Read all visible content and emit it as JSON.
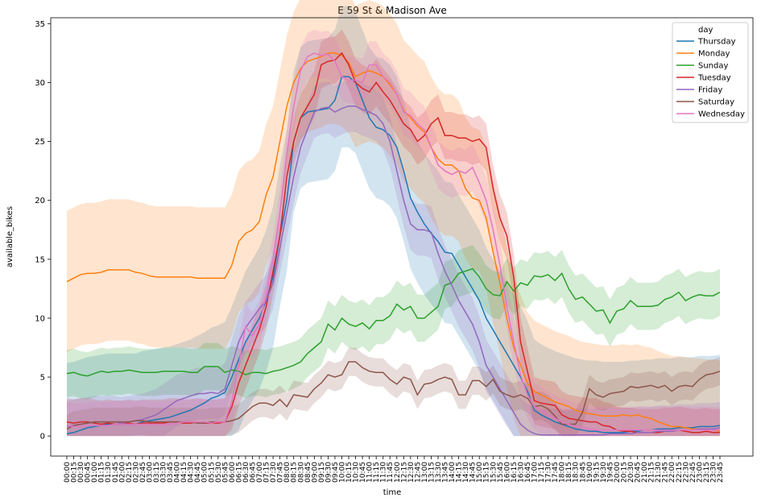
{
  "chart_data": {
    "type": "line",
    "title": "E 59 St & Madison Ave",
    "xlabel": "time",
    "ylabel": "available_bikes",
    "ylim": [
      -1.7,
      35.5
    ],
    "yticks": [
      0,
      5,
      10,
      15,
      20,
      25,
      30,
      35
    ],
    "grid": false,
    "legend": {
      "title": "day",
      "placement": "top-right"
    },
    "x": [
      "00:00",
      "00:15",
      "00:30",
      "00:45",
      "01:00",
      "01:15",
      "01:30",
      "01:45",
      "02:00",
      "02:15",
      "02:30",
      "02:45",
      "03:00",
      "03:15",
      "03:30",
      "03:45",
      "04:00",
      "04:15",
      "04:30",
      "04:45",
      "05:00",
      "05:15",
      "05:30",
      "05:45",
      "06:00",
      "06:15",
      "06:30",
      "06:45",
      "07:00",
      "07:15",
      "07:30",
      "07:45",
      "08:00",
      "08:15",
      "08:30",
      "08:45",
      "09:00",
      "09:15",
      "09:30",
      "09:45",
      "10:00",
      "10:15",
      "10:30",
      "10:45",
      "11:00",
      "11:15",
      "11:30",
      "11:45",
      "12:00",
      "12:15",
      "12:30",
      "12:45",
      "13:00",
      "13:15",
      "13:30",
      "13:45",
      "14:00",
      "14:15",
      "14:30",
      "14:45",
      "15:00",
      "15:15",
      "15:30",
      "15:45",
      "16:00",
      "16:15",
      "16:30",
      "16:45",
      "17:00",
      "17:15",
      "17:30",
      "17:45",
      "18:00",
      "18:15",
      "18:30",
      "18:45",
      "19:00",
      "19:15",
      "19:30",
      "19:45",
      "20:00",
      "20:15",
      "20:30",
      "20:45",
      "21:00",
      "21:15",
      "21:30",
      "21:45",
      "22:00",
      "22:15",
      "22:30",
      "22:45",
      "23:00",
      "23:15",
      "23:30",
      "23:45"
    ],
    "series": [
      {
        "name": "Thursday",
        "color": "#1f77b4",
        "values": [
          0.2,
          0.3,
          0.5,
          0.7,
          0.8,
          0.9,
          1,
          1,
          1,
          1,
          1,
          1.2,
          1.3,
          1.4,
          1.5,
          1.6,
          1.8,
          2,
          2.2,
          2.5,
          2.8,
          3.2,
          3.4,
          3.7,
          5,
          6.5,
          8,
          9,
          10,
          11.5,
          13.5,
          17,
          20,
          25,
          27,
          27.5,
          27.6,
          27.7,
          27.8,
          28.5,
          30.5,
          30.5,
          30,
          28.5,
          27,
          26.2,
          26,
          25.5,
          24.5,
          22.5,
          20.2,
          19,
          18,
          17.2,
          16.5,
          15.6,
          15.5,
          14.5,
          13.5,
          12.5,
          11.5,
          10,
          9,
          8,
          7,
          6,
          5,
          3.8,
          2.2,
          1.8,
          1.5,
          1.2,
          1,
          0.8,
          0.6,
          0.5,
          0.4,
          0.4,
          0.3,
          0.3,
          0.3,
          0.3,
          0.4,
          0.4,
          0.5,
          0.5,
          0.6,
          0.6,
          0.6,
          0.7,
          0.7,
          0.7,
          0.8,
          0.8,
          0.8,
          0.9
        ]
      },
      {
        "name": "Monday",
        "color": "#ff7f0e",
        "values": [
          13.1,
          13.4,
          13.7,
          13.8,
          13.8,
          13.9,
          14.1,
          14.1,
          14.1,
          14.1,
          13.9,
          13.8,
          13.6,
          13.5,
          13.5,
          13.5,
          13.5,
          13.5,
          13.5,
          13.4,
          13.4,
          13.4,
          13.4,
          13.4,
          14.5,
          16.5,
          17.2,
          17.5,
          18.2,
          20.5,
          22,
          25,
          28,
          30,
          31.2,
          31.8,
          32,
          32.2,
          32.5,
          32.5,
          32.3,
          31.7,
          30.5,
          30.8,
          31,
          30.8,
          30.5,
          29.8,
          29,
          27.6,
          27,
          26.3,
          25.8,
          24.5,
          23.5,
          23,
          23,
          22.5,
          21,
          20.2,
          20,
          18.5,
          15.6,
          13,
          10,
          7.5,
          6,
          4.5,
          3.8,
          3.5,
          3.2,
          2.9,
          2.7,
          2.5,
          2.2,
          2,
          1.9,
          1.8,
          1.7,
          1.7,
          1.7,
          1.8,
          1.7,
          1.8,
          1.6,
          1.5,
          1.2,
          1,
          0.8,
          0.8,
          0.7,
          0.6,
          0.6,
          0.5,
          0.5,
          0.4
        ]
      },
      {
        "name": "Sunday",
        "color": "#2ca02c",
        "values": [
          5.3,
          5.4,
          5.2,
          5.1,
          5.3,
          5.5,
          5.4,
          5.5,
          5.5,
          5.6,
          5.5,
          5.4,
          5.4,
          5.4,
          5.5,
          5.5,
          5.5,
          5.5,
          5.4,
          5.4,
          5.9,
          5.9,
          5.9,
          5.4,
          5.6,
          5.5,
          5.2,
          5.4,
          5.4,
          5.3,
          5.5,
          5.6,
          5.8,
          6,
          6.3,
          7,
          7.5,
          8,
          9.5,
          9,
          10,
          9.5,
          9.3,
          9.6,
          9.1,
          9.8,
          9.8,
          10.2,
          11.2,
          10.7,
          11,
          10,
          10,
          10.5,
          11,
          12.8,
          13,
          13.8,
          14,
          14.2,
          13.5,
          12.5,
          12,
          11.9,
          13.1,
          12.3,
          13,
          12.8,
          13.6,
          13.5,
          13.7,
          13.2,
          13.8,
          12.5,
          11.6,
          11.8,
          11.2,
          10.6,
          10.7,
          9.6,
          10.6,
          10.8,
          11.5,
          11,
          11,
          11,
          11.1,
          11.6,
          11.8,
          12.2,
          11.5,
          11.8,
          12,
          11.9,
          11.9,
          12.2
        ]
      },
      {
        "name": "Tuesday",
        "color": "#d62728",
        "values": [
          1.2,
          1.1,
          1.2,
          1.2,
          1.1,
          1.0,
          1.1,
          1.0,
          1.0,
          1.1,
          1.0,
          1.1,
          1.1,
          1.1,
          1.1,
          1.2,
          1.2,
          1.1,
          1.1,
          1.2,
          1.1,
          1.1,
          1.1,
          1.2,
          2.5,
          4.5,
          6,
          7.5,
          9,
          11,
          14,
          17,
          22,
          25,
          27,
          28,
          29,
          31.5,
          31.8,
          31.9,
          32.5,
          31.5,
          30,
          29.5,
          29.2,
          30,
          29.2,
          28.5,
          27.5,
          26.5,
          26,
          25,
          25.5,
          26.5,
          27,
          25.5,
          25.5,
          25.3,
          25.3,
          25,
          25.2,
          24.5,
          21,
          18.5,
          17,
          13.5,
          8,
          5.5,
          3,
          2.8,
          2.7,
          2.6,
          1.8,
          1.5,
          1.4,
          1.3,
          1.2,
          1.2,
          0.9,
          0.8,
          0.5,
          0.4,
          0.4,
          0.3,
          0.3,
          0.3,
          0.3,
          0.4,
          0.4,
          0.5,
          0.4,
          0.3,
          0.3,
          0.4,
          0.3,
          0.3
        ]
      },
      {
        "name": "Friday",
        "color": "#9467bd",
        "values": [
          0.8,
          0.9,
          1,
          1.1,
          1.2,
          1.2,
          1.2,
          1.2,
          1.1,
          1.2,
          1.3,
          1.4,
          1.6,
          1.8,
          2.2,
          2.6,
          3,
          3.2,
          3.4,
          3.6,
          3.6,
          3.7,
          3.6,
          4,
          6,
          8,
          9.2,
          10,
          10.8,
          11.5,
          13,
          16,
          19,
          22,
          24.5,
          26,
          27.5,
          27.8,
          27.9,
          27.5,
          27.8,
          28,
          28,
          27.7,
          27.5,
          27.2,
          26.5,
          25,
          22.5,
          20,
          18,
          17.5,
          17.5,
          17.3,
          15.5,
          14,
          12.8,
          11.5,
          10.5,
          9.5,
          8,
          6,
          5,
          4,
          3,
          2,
          1,
          0.5,
          0.2,
          0.1,
          0.1,
          0.1,
          0.1,
          0.1,
          0.1,
          0.1,
          0.1,
          0.1,
          0.1,
          0.2,
          0.2,
          0.2,
          0.2,
          0.3,
          0.3,
          0.3,
          0.4,
          0.4,
          0.4,
          0.5,
          0.5,
          0.5,
          0.6,
          0.6,
          0.6,
          0.7
        ]
      },
      {
        "name": "Saturday",
        "color": "#8c564b",
        "values": [
          0.6,
          0.9,
          1,
          1.1,
          1.2,
          1.2,
          1.2,
          1.2,
          1.2,
          1.2,
          1.3,
          1.3,
          1.2,
          1.2,
          1.2,
          1.2,
          1.2,
          1.2,
          1.2,
          1.1,
          1.1,
          1.2,
          1.2,
          1.2,
          1.3,
          1.5,
          2,
          2.5,
          2.8,
          2.8,
          2.6,
          3.1,
          2.5,
          3.5,
          3.4,
          3.3,
          4,
          4.5,
          5.2,
          5,
          5.2,
          6.3,
          6.3,
          5.8,
          5.5,
          5.4,
          5.4,
          4.8,
          4.4,
          5,
          4.8,
          3.5,
          4.4,
          4.5,
          4.8,
          5,
          4.8,
          3.5,
          3.5,
          4.7,
          4.7,
          4.2,
          4.8,
          3.8,
          3.5,
          3.3,
          3.5,
          3.2,
          2.5,
          2.6,
          2.3,
          1.7,
          1,
          1,
          1,
          2,
          4,
          3.5,
          3.3,
          3.6,
          3.7,
          3.8,
          4.2,
          4.1,
          4.2,
          4.3,
          4.1,
          4.3,
          3.8,
          4.2,
          4.3,
          4.2,
          4.8,
          5.2,
          5.3,
          5.5
        ]
      },
      {
        "name": "Wednesday",
        "color": "#e377c2",
        "values": [
          0.9,
          0.8,
          0.8,
          0.9,
          0.9,
          0.9,
          0.9,
          1,
          1,
          1,
          1,
          1,
          1,
          1,
          1,
          1,
          1.1,
          1.2,
          1.2,
          1.2,
          1.2,
          1.1,
          1.2,
          1.2,
          3,
          6,
          9.3,
          8.5,
          9.5,
          12,
          15,
          19,
          24,
          28,
          31,
          32.2,
          32.5,
          32.3,
          32.4,
          31.8,
          30.5,
          30.2,
          30.2,
          30,
          31.5,
          31.5,
          30.5,
          30,
          29,
          27.5,
          27.2,
          26.5,
          26,
          24.5,
          23,
          22.5,
          22.2,
          22.5,
          22.3,
          22.8,
          21.5,
          20,
          17.5,
          14.5,
          11,
          8,
          5.2,
          3.5,
          2.5,
          2.2,
          1.8,
          1.5,
          1.2,
          1,
          0.8,
          0.7,
          0.6,
          0.5,
          0.5,
          0.5,
          0.5,
          0.5,
          0.5,
          0.5,
          0.5,
          0.5,
          0.5,
          0.5,
          0.5,
          0.5,
          0.5,
          0.5,
          0.5,
          0.5,
          0.5,
          0.5
        ]
      }
    ],
    "ci_halfwidth": [
      6,
      6,
      2,
      2,
      2.2,
      1.2,
      2
    ]
  }
}
